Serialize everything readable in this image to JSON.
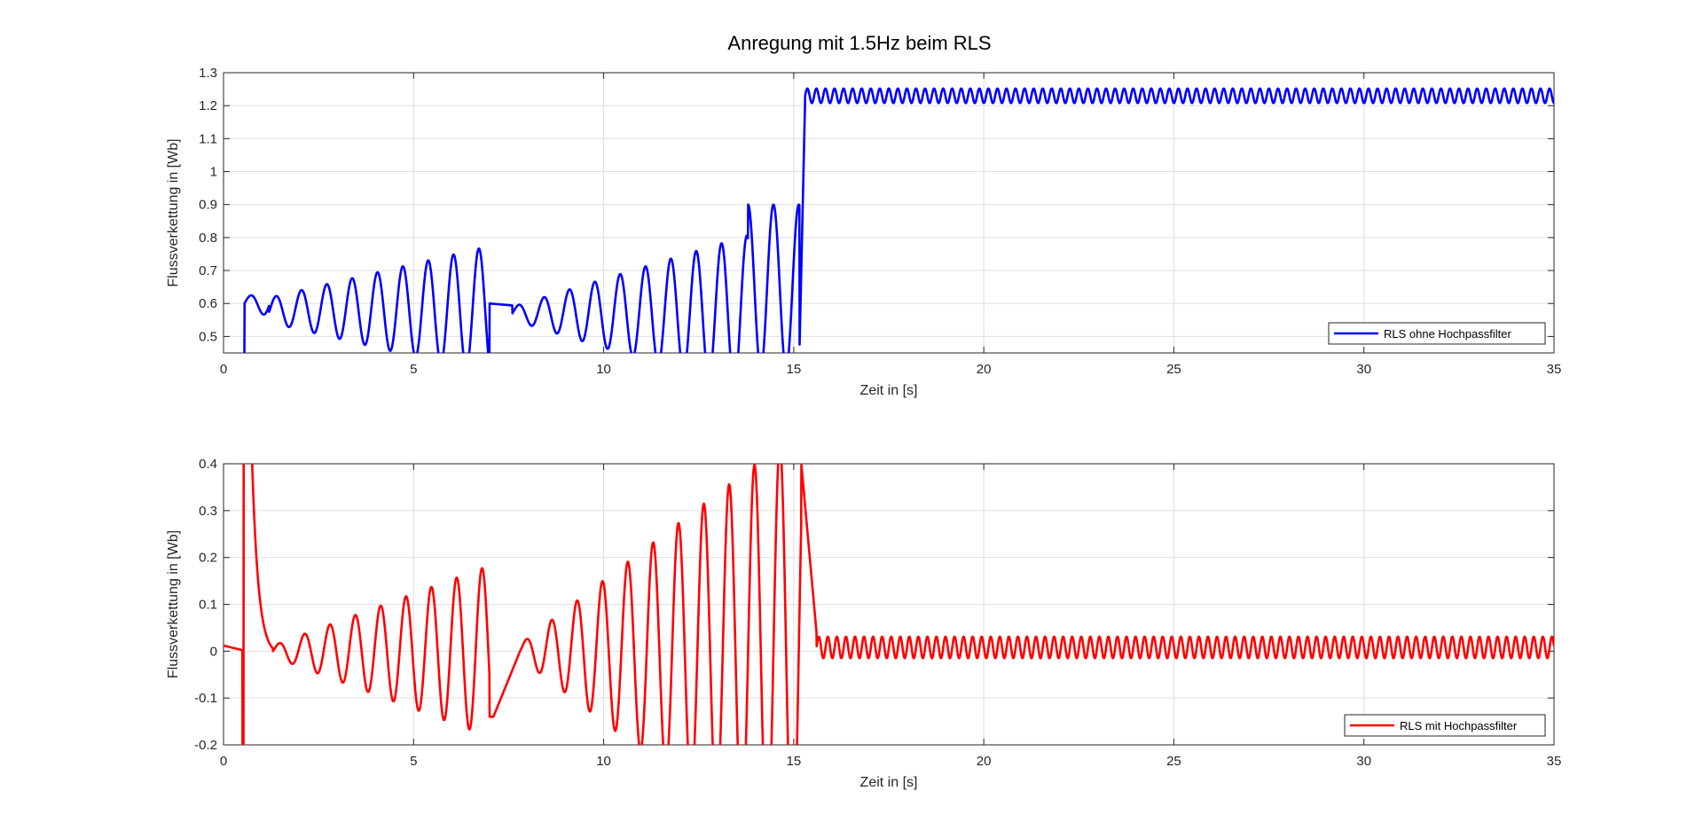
{
  "figure": {
    "title": "Anregung mit 1.5Hz beim RLS"
  },
  "chart_data": [
    {
      "type": "line",
      "xlabel": "Zeit in [s]",
      "ylabel": "Flussverkettung in [Wb]",
      "xlim": [
        0,
        35
      ],
      "ylim": [
        0.45,
        1.3
      ],
      "xticks": [
        0,
        5,
        10,
        15,
        20,
        25,
        30,
        35
      ],
      "yticks": [
        0.5,
        0.6,
        0.7,
        0.8,
        0.9,
        1,
        1.1,
        1.2,
        1.3
      ],
      "grid": true,
      "legend_location": "bottom-right",
      "series": [
        {
          "name": "RLS ohne Hochpassfilter",
          "color": "#0000ff",
          "description_points": [
            [
              0.5,
              0.45
            ],
            [
              0.55,
              0.59
            ],
            [
              1.0,
              0.6
            ],
            [
              1.5,
              0.58
            ],
            [
              2.0,
              0.63
            ],
            [
              3.0,
              0.53
            ],
            [
              4.0,
              0.68
            ],
            [
              5.0,
              0.49
            ],
            [
              6.0,
              0.74
            ],
            [
              6.5,
              0.46
            ],
            [
              6.85,
              0.81
            ],
            [
              7.0,
              0.6
            ],
            [
              7.5,
              0.6
            ],
            [
              8.0,
              0.56
            ],
            [
              9.0,
              0.64
            ],
            [
              10.0,
              0.45
            ],
            [
              11.0,
              0.73
            ],
            [
              12.0,
              0.45
            ],
            [
              13.0,
              0.78
            ],
            [
              13.6,
              0.45
            ],
            [
              13.9,
              0.88
            ],
            [
              14.7,
              0.88
            ],
            [
              15.1,
              0.45
            ],
            [
              15.25,
              1.2
            ],
            [
              15.5,
              1.25
            ],
            [
              20,
              1.25
            ],
            [
              25,
              1.21
            ],
            [
              30,
              1.25
            ],
            [
              35,
              1.22
            ]
          ]
        }
      ]
    },
    {
      "type": "line",
      "xlabel": "Zeit in [s]",
      "ylabel": "Flussverkettung in [Wb]",
      "xlim": [
        0,
        35
      ],
      "ylim": [
        -0.2,
        0.4
      ],
      "xticks": [
        0,
        5,
        10,
        15,
        20,
        25,
        30,
        35
      ],
      "yticks": [
        -0.2,
        -0.1,
        0,
        0.1,
        0.2,
        0.3,
        0.4
      ],
      "grid": true,
      "legend_location": "bottom-right",
      "series": [
        {
          "name": "RLS mit Hochpassfilter",
          "color": "#ff0000",
          "description_points": [
            [
              0,
              0.01
            ],
            [
              0.5,
              0.0
            ],
            [
              0.52,
              -0.2
            ],
            [
              0.55,
              0.4
            ],
            [
              0.75,
              0.4
            ],
            [
              1.0,
              0.04
            ],
            [
              1.2,
              -0.01
            ],
            [
              2.0,
              0.03
            ],
            [
              3.0,
              0.06
            ],
            [
              4.0,
              0.1
            ],
            [
              4.5,
              -0.12
            ],
            [
              5.0,
              0.12
            ],
            [
              6.0,
              0.16
            ],
            [
              6.5,
              -0.18
            ],
            [
              6.95,
              0.19
            ],
            [
              7.0,
              -0.14
            ],
            [
              7.1,
              -0.05
            ],
            [
              7.5,
              0.0
            ],
            [
              8.0,
              0.02
            ],
            [
              9.0,
              0.06
            ],
            [
              10.0,
              0.1
            ],
            [
              10.5,
              -0.2
            ],
            [
              11.0,
              0.19
            ],
            [
              12.0,
              0.3
            ],
            [
              12.5,
              -0.2
            ],
            [
              13.0,
              0.36
            ],
            [
              13.4,
              0.4
            ],
            [
              14.0,
              -0.2
            ],
            [
              14.5,
              0.4
            ],
            [
              15.1,
              -0.2
            ],
            [
              15.2,
              0.4
            ],
            [
              15.5,
              0.06
            ],
            [
              16.0,
              0.03
            ],
            [
              20,
              -0.02
            ],
            [
              25,
              0.03
            ],
            [
              30,
              -0.02
            ],
            [
              35,
              -0.01
            ]
          ]
        }
      ]
    }
  ]
}
